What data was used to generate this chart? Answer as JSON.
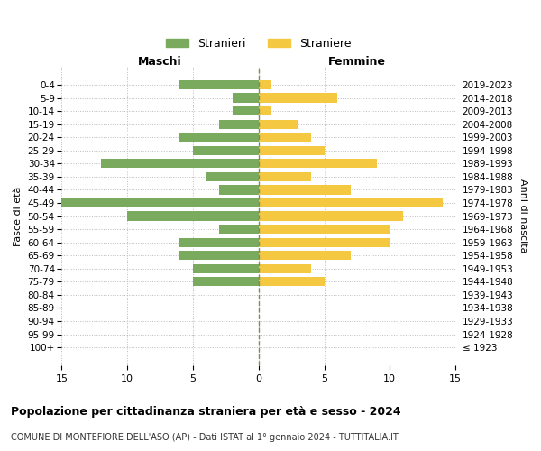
{
  "age_groups": [
    "100+",
    "95-99",
    "90-94",
    "85-89",
    "80-84",
    "75-79",
    "70-74",
    "65-69",
    "60-64",
    "55-59",
    "50-54",
    "45-49",
    "40-44",
    "35-39",
    "30-34",
    "25-29",
    "20-24",
    "15-19",
    "10-14",
    "5-9",
    "0-4"
  ],
  "birth_years": [
    "≤ 1923",
    "1924-1928",
    "1929-1933",
    "1934-1938",
    "1939-1943",
    "1944-1948",
    "1949-1953",
    "1954-1958",
    "1959-1963",
    "1964-1968",
    "1969-1973",
    "1974-1978",
    "1979-1983",
    "1984-1988",
    "1989-1993",
    "1994-1998",
    "1999-2003",
    "2004-2008",
    "2009-2013",
    "2014-2018",
    "2019-2023"
  ],
  "maschi": [
    0,
    0,
    0,
    0,
    0,
    5,
    5,
    6,
    6,
    3,
    10,
    16,
    3,
    4,
    12,
    5,
    6,
    3,
    2,
    2,
    6
  ],
  "femmine": [
    0,
    0,
    0,
    0,
    0,
    5,
    4,
    7,
    10,
    10,
    11,
    14,
    7,
    4,
    9,
    5,
    4,
    3,
    1,
    6,
    1
  ],
  "male_color": "#7aaa5e",
  "female_color": "#f5c842",
  "title": "Popolazione per cittadinanza straniera per età e sesso - 2024",
  "subtitle": "COMUNE DI MONTEFIORE DELL'ASO (AP) - Dati ISTAT al 1° gennaio 2024 - TUTTITALIA.IT",
  "xlabel_left": "Maschi",
  "xlabel_right": "Femmine",
  "ylabel_left": "Fasce di età",
  "ylabel_right": "Anni di nascita",
  "legend_stranieri": "Stranieri",
  "legend_straniere": "Straniere",
  "xlim": 15,
  "background_color": "#ffffff"
}
